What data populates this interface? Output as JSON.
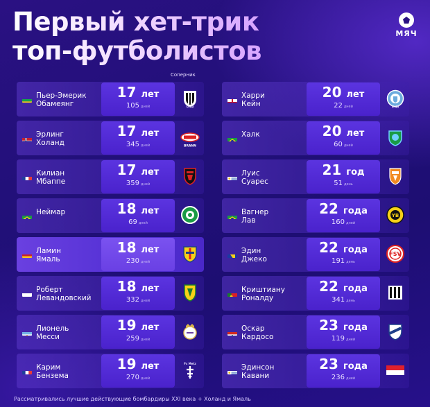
{
  "title": {
    "line1": "Первый хет-трик",
    "line2": "топ-футболистов"
  },
  "brand": {
    "wordmark": "МЯЧ"
  },
  "opponent_label": "Соперник",
  "colors": {
    "accent": "#5b34e0",
    "highlight": "#6a40e0",
    "background": "#22107a"
  },
  "left": [
    {
      "name": "Пьер-Эмерик\nОбамеянг",
      "age": "17",
      "unit": "лет",
      "days": "105",
      "days_unit": "дней",
      "flag": "flag-gabon",
      "crest": "udinese-crest",
      "crest_text": "U-40"
    },
    {
      "name": "Эрлинг\nХоланд",
      "age": "17",
      "unit": "лет",
      "days": "345",
      "days_unit": "дней",
      "flag": "flag-norway",
      "crest": "brann-crest",
      "crest_text": "BRANN"
    },
    {
      "name": "Килиан\nМбаппе",
      "age": "17",
      "unit": "лет",
      "days": "359",
      "days_unit": "дней",
      "flag": "flag-france",
      "crest": "rennes-crest",
      "crest_text": ""
    },
    {
      "name": "Неймар",
      "age": "18",
      "unit": "лет",
      "days": "69",
      "days_unit": "дней",
      "flag": "flag-brazil",
      "crest": "guarani-crest",
      "crest_text": ""
    },
    {
      "name": "Ламин\nЯмаль",
      "age": "18",
      "unit": "лет",
      "days": "230",
      "days_unit": "дней",
      "flag": "flag-spain",
      "crest": "villarreal-crest",
      "crest_text": ""
    },
    {
      "name": "Роберт\nЛевандовский",
      "age": "18",
      "unit": "лет",
      "days": "332",
      "days_unit": "дней",
      "flag": "flag-poland",
      "crest": "znicz-crest",
      "crest_text": ""
    },
    {
      "name": "Лионель\nМесси",
      "age": "19",
      "unit": "лет",
      "days": "259",
      "days_unit": "дней",
      "flag": "flag-argentina",
      "crest": "real-madrid-crest",
      "crest_text": ""
    },
    {
      "name": "Карим\nБензема",
      "age": "19",
      "unit": "лет",
      "days": "270",
      "days_unit": "дней",
      "flag": "flag-france",
      "crest": "metz-crest",
      "crest_text": "Fc Metz"
    }
  ],
  "right": [
    {
      "name": "Харри\nКейн",
      "age": "20",
      "unit": "лет",
      "days": "22",
      "days_unit": "дней",
      "flag": "flag-england",
      "crest": "man-city-crest",
      "crest_text": "U-40"
    },
    {
      "name": "Халк",
      "age": "20",
      "unit": "лет",
      "days": "60",
      "days_unit": "дней",
      "flag": "flag-brazil",
      "crest": "shonan-crest",
      "crest_text": ""
    },
    {
      "name": "Луис\nСуарес",
      "age": "21",
      "unit": "год",
      "days": "51",
      "days_unit": "день",
      "flag": "flag-uruguay",
      "crest": "volendam-crest",
      "crest_text": ""
    },
    {
      "name": "Вагнер\nЛав",
      "age": "22",
      "unit": "года",
      "days": "160",
      "days_unit": "дней",
      "flag": "flag-brazil",
      "crest": "young-boys-crest",
      "crest_text": ""
    },
    {
      "name": "Эдин\nДжеко",
      "age": "22",
      "unit": "года",
      "days": "191",
      "days_unit": "день",
      "flag": "flag-bosnia",
      "crest": "zwickau-crest",
      "crest_text": ""
    },
    {
      "name": "Криштиану\nРоналду",
      "age": "22",
      "unit": "года",
      "days": "341",
      "days_unit": "день",
      "flag": "flag-portugal",
      "crest": "newcastle-crest",
      "crest_text": ""
    },
    {
      "name": "Оскар\nКардосо",
      "age": "23",
      "unit": "года",
      "days": "119",
      "days_unit": "дней",
      "flag": "flag-paraguay",
      "crest": "tigre-crest",
      "crest_text": ""
    },
    {
      "name": "Эдинсон\nКавани",
      "age": "23",
      "unit": "года",
      "days": "236",
      "days_unit": "дней",
      "flag": "flag-uruguay",
      "crest": "monaco-flag-crest",
      "crest_text": ""
    }
  ],
  "footnote": "Рассматривались лучшие действующие бомбардиры XXI века + Холанд и Ямаль"
}
